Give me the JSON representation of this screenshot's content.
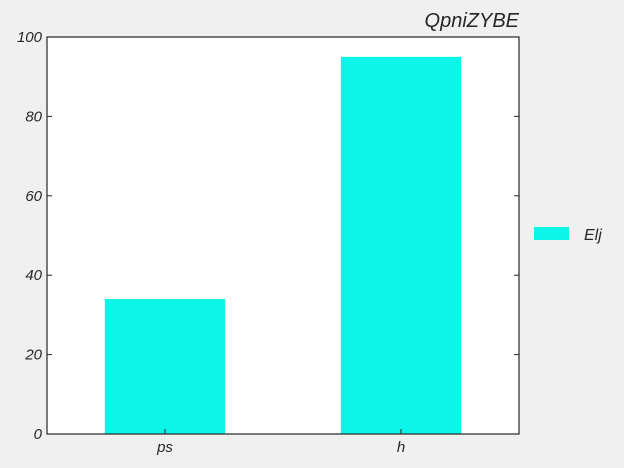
{
  "chart_data": {
    "type": "bar",
    "title": "QpniZYBE",
    "xlabel": "",
    "ylabel": "",
    "categories": [
      "ps",
      "h"
    ],
    "series": [
      {
        "name": "Elj",
        "values": [
          34,
          95
        ],
        "color": "#0cf5e8"
      }
    ],
    "ylim": [
      0,
      100
    ],
    "yticks": [
      0,
      20,
      40,
      60,
      80,
      100
    ],
    "ytick_labels": [
      "0",
      "20",
      "40",
      "60",
      "80",
      "100"
    ],
    "grid": false,
    "legend_position": "right"
  },
  "colors": {
    "figure_background": "#f0f0f0",
    "plot_background": "#ffffff",
    "axes_edge": "#262626"
  }
}
